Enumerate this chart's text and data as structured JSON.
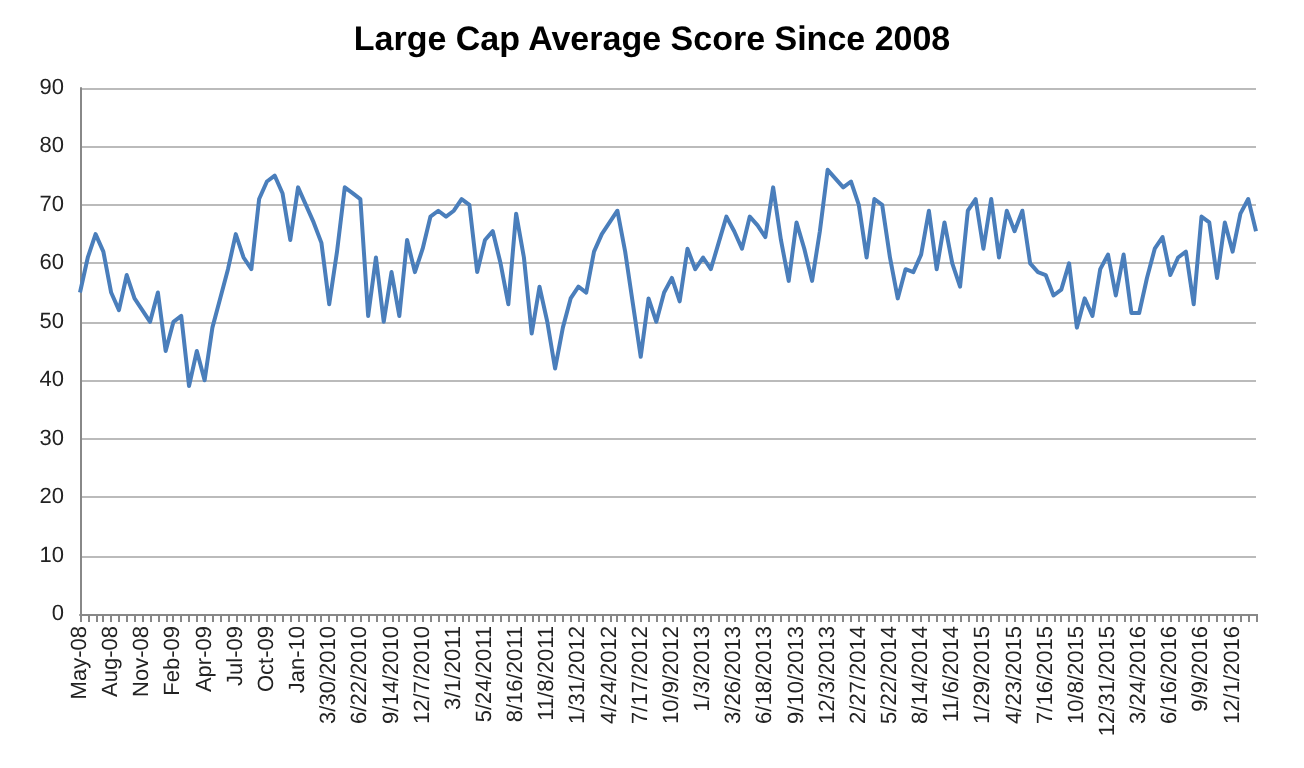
{
  "chart_data": {
    "type": "line",
    "title": "Large Cap Average Score Since 2008",
    "categories": [
      "May-08",
      null,
      null,
      null,
      "Aug-08",
      null,
      null,
      null,
      "Nov-08",
      null,
      null,
      null,
      "Feb-09",
      null,
      null,
      null,
      "Apr-09",
      null,
      null,
      null,
      "Jul-09",
      null,
      null,
      null,
      "Oct-09",
      null,
      null,
      null,
      "Jan-10",
      null,
      null,
      null,
      "3/30/2010",
      null,
      null,
      null,
      "6/22/2010",
      null,
      null,
      null,
      "9/14/2010",
      null,
      null,
      null,
      "12/7/2010",
      null,
      null,
      null,
      "3/1/2011",
      null,
      null,
      null,
      "5/24/2011",
      null,
      null,
      null,
      "8/16/2011",
      null,
      null,
      null,
      "11/8/2011",
      null,
      null,
      null,
      "1/31/2012",
      null,
      null,
      null,
      "4/24/2012",
      null,
      null,
      null,
      "7/17/2012",
      null,
      null,
      null,
      "10/9/2012",
      null,
      null,
      null,
      "1/3/2013",
      null,
      null,
      null,
      "3/26/2013",
      null,
      null,
      null,
      "6/18/2013",
      null,
      null,
      null,
      "9/10/2013",
      null,
      null,
      null,
      "12/3/2013",
      null,
      null,
      null,
      "2/27/2014",
      null,
      null,
      null,
      "5/22/2014",
      null,
      null,
      null,
      "8/14/2014",
      null,
      null,
      null,
      "11/6/2014",
      null,
      null,
      null,
      "1/29/2015",
      null,
      null,
      null,
      "4/23/2015",
      null,
      null,
      null,
      "7/16/2015",
      null,
      null,
      null,
      "10/8/2015",
      null,
      null,
      null,
      "12/31/2015",
      null,
      null,
      null,
      "3/24/2016",
      null,
      null,
      null,
      "6/16/2016",
      null,
      null,
      null,
      "9/9/2016",
      null,
      null,
      null,
      "12/1/2016",
      null,
      null,
      null
    ],
    "series": [
      {
        "color": "#4a7ebb",
        "values": [
          55,
          61,
          65,
          62,
          55,
          52,
          58,
          54,
          52,
          50,
          55,
          45,
          50,
          51,
          39,
          45,
          40,
          49,
          54,
          59,
          65,
          61,
          59,
          71,
          74,
          75,
          72,
          64,
          73,
          70,
          67,
          63.5,
          53,
          62,
          73,
          72,
          71,
          51,
          61,
          50,
          58.5,
          51,
          64,
          58.5,
          62.5,
          68,
          69,
          68,
          69,
          71,
          70,
          58.5,
          64,
          65.5,
          60,
          53,
          68.5,
          61,
          48,
          56,
          50,
          42,
          49,
          54,
          56,
          55,
          62,
          65,
          67,
          69,
          62,
          53,
          44,
          54,
          50,
          55,
          57.5,
          53.5,
          62.5,
          59,
          61,
          59,
          63.5,
          68,
          65.5,
          62.5,
          68,
          66.5,
          64.5,
          73,
          64,
          57,
          67,
          62.5,
          57,
          65.5,
          76,
          74.5,
          73,
          74,
          70,
          61,
          71,
          70,
          61,
          54,
          59,
          58.5,
          61.5,
          69,
          59,
          67,
          60,
          56,
          69,
          71,
          62.5,
          71,
          61,
          69,
          65.5,
          69,
          60,
          58.5,
          58,
          54.5,
          55.5,
          60,
          49,
          54,
          51,
          59,
          61.5,
          54.5,
          61.5,
          51.5,
          51.5,
          57.5,
          62.5,
          64.5,
          58,
          61,
          62,
          53,
          68,
          67,
          57.5,
          67,
          62,
          68.5,
          71,
          65.5
        ]
      }
    ],
    "ylim": [
      0,
      90
    ],
    "yticks": [
      0,
      10,
      20,
      30,
      40,
      50,
      60,
      70,
      80,
      90
    ],
    "grid": "y",
    "marker": "none"
  }
}
